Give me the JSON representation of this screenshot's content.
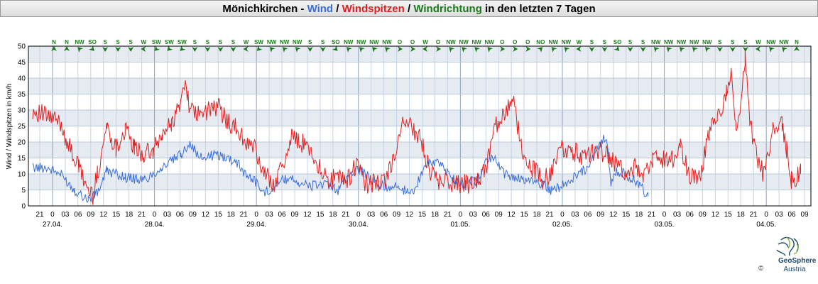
{
  "title": {
    "parts": [
      {
        "text": "Mönichkirchen - ",
        "color": "#000000"
      },
      {
        "text": "Wind",
        "color": "#3a6fd8"
      },
      {
        "text": " / ",
        "color": "#000000"
      },
      {
        "text": "Windspitzen",
        "color": "#e02020"
      },
      {
        "text": " / ",
        "color": "#000000"
      },
      {
        "text": "Windrichtung",
        "color": "#1a7a1a"
      },
      {
        "text": " in den letzten 7 Tagen",
        "color": "#000000"
      }
    ]
  },
  "logo": {
    "name": "GeoSphere",
    "sub": "Austria",
    "copyright": "©"
  },
  "chart_data": {
    "type": "line",
    "ylabel": "Wind / Windspitzen in km/h",
    "ylim": [
      0,
      50
    ],
    "yticks": [
      0,
      5,
      10,
      15,
      20,
      25,
      30,
      35,
      40,
      45,
      50
    ],
    "grid": true,
    "x_hour_labels": [
      "21",
      "0",
      "03",
      "06",
      "09",
      "12",
      "15",
      "18",
      "21",
      "0",
      "03",
      "06",
      "09",
      "12",
      "15",
      "18",
      "21",
      "0",
      "03",
      "06",
      "09",
      "12",
      "15",
      "18",
      "21",
      "0",
      "03",
      "06",
      "09",
      "12",
      "15",
      "18",
      "21",
      "0",
      "03",
      "06",
      "09",
      "12",
      "15",
      "18",
      "21",
      "0",
      "03",
      "06",
      "09",
      "12",
      "15",
      "18",
      "21",
      "0",
      "03",
      "06",
      "09",
      "12",
      "15",
      "18",
      "21",
      "0",
      "03",
      "06",
      "09"
    ],
    "x_date_labels": [
      {
        "label": "27.04.",
        "index": 1
      },
      {
        "label": "28.04.",
        "index": 9
      },
      {
        "label": "29.04.",
        "index": 17
      },
      {
        "label": "30.04.",
        "index": 25
      },
      {
        "label": "01.05.",
        "index": 33
      },
      {
        "label": "02.05.",
        "index": 41
      },
      {
        "label": "03.05.",
        "index": 49
      },
      {
        "label": "04.05.",
        "index": 57
      }
    ],
    "series": [
      {
        "name": "Wind",
        "color": "#3a6fd8",
        "keyframes": [
          [
            0,
            12
          ],
          [
            3,
            12
          ],
          [
            6,
            10
          ],
          [
            9,
            5
          ],
          [
            12,
            2
          ],
          [
            14,
            4
          ],
          [
            16,
            11
          ],
          [
            20,
            9
          ],
          [
            24,
            8
          ],
          [
            28,
            12
          ],
          [
            32,
            16
          ],
          [
            34,
            20
          ],
          [
            36,
            15
          ],
          [
            40,
            16
          ],
          [
            44,
            14
          ],
          [
            46,
            10
          ],
          [
            48,
            8
          ],
          [
            50,
            4
          ],
          [
            52,
            6
          ],
          [
            54,
            8
          ],
          [
            56,
            9
          ],
          [
            58,
            7
          ],
          [
            60,
            6
          ],
          [
            62,
            7
          ],
          [
            64,
            6
          ],
          [
            66,
            5
          ],
          [
            68,
            9
          ],
          [
            70,
            12
          ],
          [
            72,
            10
          ],
          [
            74,
            7
          ],
          [
            76,
            6
          ],
          [
            78,
            6
          ],
          [
            80,
            5
          ],
          [
            82,
            4
          ],
          [
            84,
            10
          ],
          [
            86,
            14
          ],
          [
            88,
            13
          ],
          [
            90,
            10
          ],
          [
            92,
            7
          ],
          [
            94,
            7
          ],
          [
            96,
            8
          ],
          [
            98,
            14
          ],
          [
            100,
            15
          ],
          [
            102,
            10
          ],
          [
            104,
            9
          ],
          [
            106,
            8
          ],
          [
            108,
            8
          ],
          [
            110,
            7
          ],
          [
            112,
            5
          ],
          [
            114,
            6
          ],
          [
            116,
            8
          ],
          [
            118,
            10
          ],
          [
            120,
            12
          ],
          [
            122,
            18
          ],
          [
            124,
            22
          ],
          [
            125,
            6
          ],
          [
            126,
            11
          ],
          [
            128,
            10
          ],
          [
            130,
            8
          ],
          [
            132,
            5
          ],
          [
            133,
            3
          ]
        ]
      },
      {
        "name": "Windspitzen",
        "color": "#e02020",
        "keyframes": [
          [
            0,
            30
          ],
          [
            3,
            28
          ],
          [
            6,
            26
          ],
          [
            8,
            18
          ],
          [
            10,
            12
          ],
          [
            12,
            5
          ],
          [
            13,
            3
          ],
          [
            14,
            10
          ],
          [
            16,
            25
          ],
          [
            18,
            18
          ],
          [
            20,
            24
          ],
          [
            22,
            18
          ],
          [
            24,
            16
          ],
          [
            26,
            17
          ],
          [
            28,
            22
          ],
          [
            30,
            26
          ],
          [
            32,
            32
          ],
          [
            33,
            40
          ],
          [
            34,
            30
          ],
          [
            36,
            28
          ],
          [
            38,
            30
          ],
          [
            40,
            31
          ],
          [
            42,
            27
          ],
          [
            44,
            24
          ],
          [
            46,
            20
          ],
          [
            48,
            18
          ],
          [
            50,
            10
          ],
          [
            52,
            7
          ],
          [
            54,
            12
          ],
          [
            56,
            22
          ],
          [
            58,
            20
          ],
          [
            60,
            18
          ],
          [
            62,
            12
          ],
          [
            64,
            8
          ],
          [
            66,
            9
          ],
          [
            68,
            8
          ],
          [
            70,
            13
          ],
          [
            72,
            7
          ],
          [
            74,
            7
          ],
          [
            76,
            7
          ],
          [
            78,
            15
          ],
          [
            80,
            25
          ],
          [
            82,
            25
          ],
          [
            84,
            20
          ],
          [
            86,
            10
          ],
          [
            88,
            8
          ],
          [
            90,
            7
          ],
          [
            92,
            7
          ],
          [
            94,
            7
          ],
          [
            96,
            7
          ],
          [
            98,
            12
          ],
          [
            100,
            25
          ],
          [
            102,
            29
          ],
          [
            104,
            32
          ],
          [
            106,
            15
          ],
          [
            108,
            12
          ],
          [
            110,
            8
          ],
          [
            112,
            10
          ],
          [
            114,
            18
          ],
          [
            116,
            18
          ],
          [
            118,
            16
          ],
          [
            120,
            16
          ],
          [
            122,
            18
          ],
          [
            124,
            16
          ],
          [
            126,
            13
          ],
          [
            128,
            10
          ],
          [
            130,
            12
          ],
          [
            132,
            10
          ],
          [
            134,
            15
          ],
          [
            136,
            15
          ],
          [
            138,
            14
          ],
          [
            140,
            18
          ],
          [
            142,
            10
          ],
          [
            144,
            8
          ],
          [
            146,
            22
          ],
          [
            148,
            28
          ],
          [
            150,
            35
          ],
          [
            151,
            44
          ],
          [
            152,
            26
          ],
          [
            153,
            30
          ],
          [
            154,
            46
          ],
          [
            155,
            28
          ],
          [
            156,
            18
          ],
          [
            158,
            10
          ],
          [
            160,
            23
          ],
          [
            162,
            26
          ],
          [
            163,
            18
          ],
          [
            164,
            8
          ],
          [
            166,
            10
          ]
        ]
      },
      {
        "name": "Windrichtung",
        "color": "#1a7a1a",
        "labels": [
          "N",
          "N",
          "NW",
          "SO",
          "S",
          "S",
          "S",
          "W",
          "SW",
          "SW",
          "SW",
          "S",
          "S",
          "S",
          "S",
          "W",
          "SW",
          "NW",
          "NW",
          "NW",
          "S",
          "S",
          "SO",
          "NW",
          "NW",
          "NW",
          "NW",
          "O",
          "O",
          "W",
          "O",
          "NW",
          "NW",
          "NW",
          "NW",
          "O",
          "O",
          "O",
          "NO",
          "NW",
          "NW",
          "W",
          "S",
          "S",
          "SO",
          "S",
          "S",
          "NW",
          "NW",
          "NW",
          "NW",
          "NW",
          "S",
          "S",
          "S",
          "W",
          "NW",
          "NW",
          "N"
        ]
      }
    ]
  }
}
